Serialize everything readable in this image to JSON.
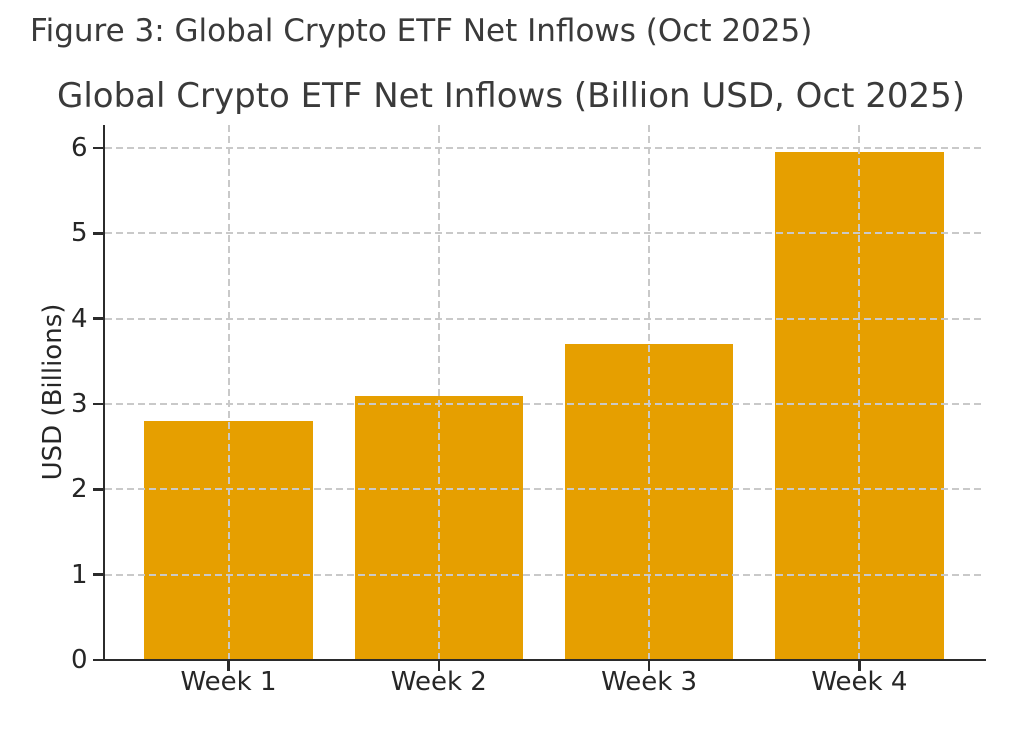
{
  "figure": {
    "caption": "Figure 3: Global Crypto ETF Net Inflows (Oct 2025)"
  },
  "chart_data": {
    "type": "bar",
    "title": "Global Crypto ETF Net Inflows (Billion USD, Oct 2025)",
    "categories": [
      "Week 1",
      "Week 2",
      "Week 3",
      "Week 4"
    ],
    "values": [
      2.8,
      3.1,
      3.7,
      5.95
    ],
    "ylabel": "USD (Billions)",
    "xlabel": "",
    "yticks": [
      0,
      1,
      2,
      3,
      4,
      5,
      6
    ],
    "ylim": [
      0,
      6.27
    ],
    "bar_color": "#E69F00",
    "grid": "dashed gray, horizontal and vertical, drawn above bars",
    "legend": "none"
  }
}
